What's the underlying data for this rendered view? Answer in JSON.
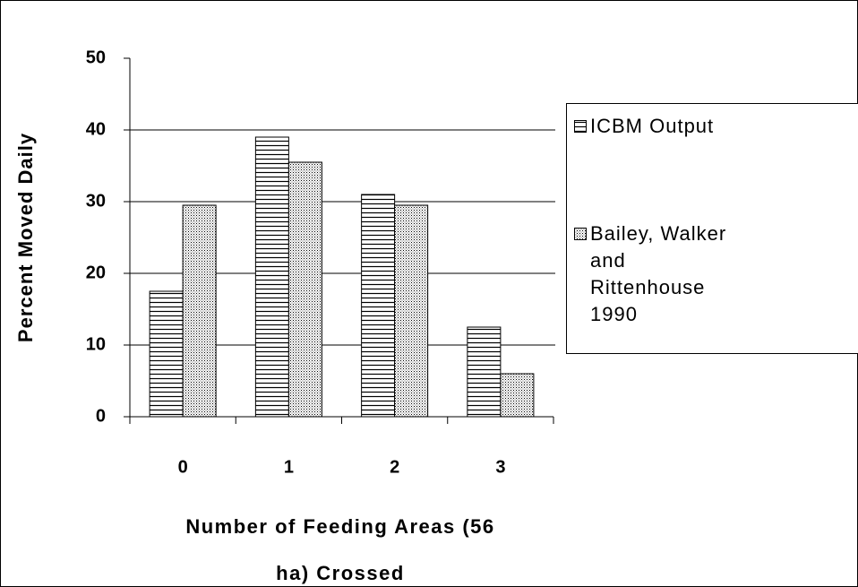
{
  "chart_data": {
    "type": "bar",
    "y_label": "Percent Moved Daily",
    "x_label": "Number of Feeding Areas (56 ha) Crossed",
    "categories": [
      "0",
      "1",
      "2",
      "3"
    ],
    "series": [
      {
        "name": "ICBM Output",
        "hatch": "horizontal",
        "values": [
          17.5,
          39,
          31,
          12.5
        ]
      },
      {
        "name": "Bailey, Walker and Rittenhouse 1990",
        "hatch": "dots",
        "values": [
          29.5,
          35.5,
          29.5,
          6
        ]
      }
    ],
    "ylim": [
      0,
      50
    ],
    "yticks": [
      0,
      10,
      20,
      30,
      40,
      50
    ],
    "grid": true,
    "legend": "right"
  }
}
